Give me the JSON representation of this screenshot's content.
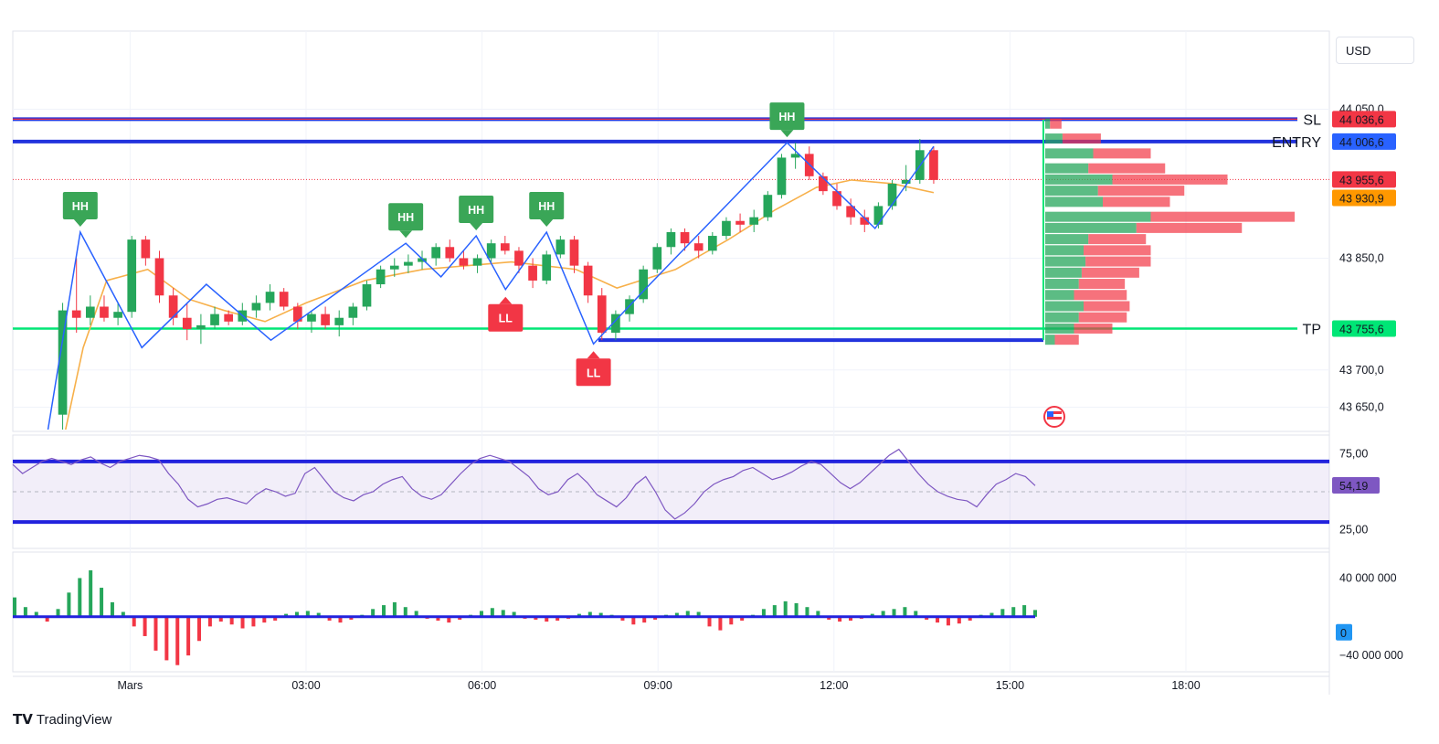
{
  "app": {
    "brand": "TradingView",
    "currency": "USD"
  },
  "chart_data": [
    {
      "type": "candlestick",
      "pane": "price",
      "time_labels": [
        "Mars",
        "03:00",
        "06:00",
        "09:00",
        "12:00",
        "15:00",
        "18:00"
      ],
      "y_ticks": [
        {
          "value": 44050,
          "label": "44 050,0"
        },
        {
          "value": 43850,
          "label": "43 850,0"
        },
        {
          "value": 43700,
          "label": "43 700,0"
        },
        {
          "value": 43650,
          "label": "43 650,0"
        }
      ],
      "ylim": [
        43620,
        44080
      ],
      "price_tags": [
        {
          "name": "SL",
          "value": 44036.6,
          "label": "44 036,6",
          "color": "#f23645"
        },
        {
          "name": "ENTRY",
          "value": 44006.6,
          "label": "44 006,6",
          "color": "#2962ff"
        },
        {
          "name": "last",
          "value": 43955.6,
          "label": "43 955,6",
          "color": "#f23645"
        },
        {
          "name": "ma",
          "value": 43930.9,
          "label": "43 930,9",
          "color": "#ff9800"
        },
        {
          "name": "TP",
          "value": 43755.6,
          "label": "43 755,6",
          "color": "#00e676"
        }
      ],
      "level_labels": [
        "SL",
        "ENTRY",
        "TP"
      ],
      "swing_markers": [
        {
          "label": "HH",
          "time": 1.15,
          "value": 43885
        },
        {
          "label": "HH",
          "time": 6.7,
          "value": 43870
        },
        {
          "label": "HH",
          "time": 7.9,
          "value": 43880
        },
        {
          "label": "HH",
          "time": 9.1,
          "value": 43885
        },
        {
          "label": "HH",
          "time": 13.2,
          "value": 44005
        },
        {
          "label": "LL",
          "time": 8.4,
          "value": 43808
        },
        {
          "label": "LL",
          "time": 9.9,
          "value": 43735
        }
      ],
      "zigzag": [
        [
          0.6,
          43620
        ],
        [
          1.15,
          43885
        ],
        [
          2.2,
          43730
        ],
        [
          3.3,
          43815
        ],
        [
          4.4,
          43740
        ],
        [
          6.7,
          43870
        ],
        [
          7.3,
          43825
        ],
        [
          7.9,
          43880
        ],
        [
          8.4,
          43808
        ],
        [
          9.1,
          43885
        ],
        [
          9.9,
          43735
        ],
        [
          10.8,
          43810
        ],
        [
          13.2,
          44005
        ],
        [
          14.7,
          43890
        ],
        [
          15.7,
          44000
        ]
      ],
      "ma_line": [
        [
          0.9,
          43620
        ],
        [
          1.2,
          43730
        ],
        [
          1.6,
          43820
        ],
        [
          2.3,
          43835
        ],
        [
          3,
          43795
        ],
        [
          3.6,
          43780
        ],
        [
          4.3,
          43765
        ],
        [
          5,
          43790
        ],
        [
          6,
          43820
        ],
        [
          7,
          43835
        ],
        [
          8.5,
          43845
        ],
        [
          9.6,
          43835
        ],
        [
          10.3,
          43810
        ],
        [
          11.3,
          43835
        ],
        [
          12.2,
          43875
        ],
        [
          13,
          43915
        ],
        [
          13.7,
          43945
        ],
        [
          14.3,
          43955
        ],
        [
          15,
          43950
        ],
        [
          15.7,
          43938
        ]
      ],
      "candles_ohlc": [
        [
          43640,
          43790,
          43620,
          43780
        ],
        [
          43780,
          43850,
          43750,
          43770
        ],
        [
          43770,
          43800,
          43760,
          43785
        ],
        [
          43785,
          43800,
          43765,
          43770
        ],
        [
          43770,
          43790,
          43760,
          43778
        ],
        [
          43778,
          43880,
          43770,
          43875
        ],
        [
          43875,
          43880,
          43840,
          43850
        ],
        [
          43850,
          43860,
          43790,
          43800
        ],
        [
          43800,
          43810,
          43760,
          43770
        ],
        [
          43770,
          43790,
          43740,
          43755
        ],
        [
          43755,
          43775,
          43735,
          43760
        ],
        [
          43760,
          43785,
          43755,
          43775
        ],
        [
          43775,
          43780,
          43760,
          43765
        ],
        [
          43765,
          43790,
          43760,
          43780
        ],
        [
          43780,
          43800,
          43770,
          43790
        ],
        [
          43790,
          43815,
          43780,
          43805
        ],
        [
          43805,
          43810,
          43780,
          43785
        ],
        [
          43785,
          43790,
          43755,
          43765
        ],
        [
          43765,
          43780,
          43750,
          43775
        ],
        [
          43775,
          43785,
          43755,
          43760
        ],
        [
          43760,
          43780,
          43745,
          43770
        ],
        [
          43770,
          43790,
          43760,
          43785
        ],
        [
          43785,
          43820,
          43780,
          43815
        ],
        [
          43815,
          43840,
          43810,
          43835
        ],
        [
          43835,
          43850,
          43825,
          43840
        ],
        [
          43840,
          43855,
          43830,
          43845
        ],
        [
          43845,
          43860,
          43835,
          43850
        ],
        [
          43850,
          43870,
          43840,
          43865
        ],
        [
          43865,
          43875,
          43845,
          43850
        ],
        [
          43850,
          43860,
          43835,
          43840
        ],
        [
          43840,
          43855,
          43830,
          43850
        ],
        [
          43850,
          43875,
          43845,
          43870
        ],
        [
          43870,
          43880,
          43855,
          43860
        ],
        [
          43860,
          43865,
          43830,
          43840
        ],
        [
          43840,
          43850,
          43810,
          43820
        ],
        [
          43820,
          43860,
          43815,
          43855
        ],
        [
          43855,
          43880,
          43850,
          43875
        ],
        [
          43875,
          43880,
          43830,
          43840
        ],
        [
          43840,
          43845,
          43790,
          43800
        ],
        [
          43800,
          43810,
          43740,
          43750
        ],
        [
          43750,
          43780,
          43740,
          43775
        ],
        [
          43775,
          43800,
          43765,
          43795
        ],
        [
          43795,
          43840,
          43790,
          43835
        ],
        [
          43835,
          43870,
          43830,
          43865
        ],
        [
          43865,
          43890,
          43855,
          43885
        ],
        [
          43885,
          43890,
          43860,
          43870
        ],
        [
          43870,
          43880,
          43850,
          43860
        ],
        [
          43860,
          43885,
          43855,
          43880
        ],
        [
          43880,
          43905,
          43875,
          43900
        ],
        [
          43900,
          43910,
          43885,
          43895
        ],
        [
          43895,
          43915,
          43885,
          43905
        ],
        [
          43905,
          43940,
          43900,
          43935
        ],
        [
          43935,
          43990,
          43930,
          43985
        ],
        [
          43985,
          44005,
          43970,
          43990
        ],
        [
          43990,
          44000,
          43955,
          43960
        ],
        [
          43960,
          43965,
          43935,
          43940
        ],
        [
          43940,
          43950,
          43915,
          43920
        ],
        [
          43920,
          43930,
          43895,
          43905
        ],
        [
          43905,
          43915,
          43885,
          43895
        ],
        [
          43895,
          43925,
          43890,
          43920
        ],
        [
          43920,
          43955,
          43915,
          43950
        ],
        [
          43950,
          43975,
          43940,
          43955
        ],
        [
          43955,
          44010,
          43950,
          43995
        ],
        [
          43995,
          44000,
          43950,
          43955
        ]
      ],
      "volume_profile": [
        {
          "value": 44030,
          "up": 5,
          "down": 12
        },
        {
          "value": 44010,
          "up": 18,
          "down": 40
        },
        {
          "value": 43990,
          "up": 50,
          "down": 60
        },
        {
          "value": 43970,
          "up": 45,
          "down": 80
        },
        {
          "value": 43955,
          "up": 70,
          "down": 120
        },
        {
          "value": 43940,
          "up": 55,
          "down": 90
        },
        {
          "value": 43925,
          "up": 60,
          "down": 70
        },
        {
          "value": 43905,
          "up": 110,
          "down": 150
        },
        {
          "value": 43890,
          "up": 95,
          "down": 110
        },
        {
          "value": 43875,
          "up": 45,
          "down": 60
        },
        {
          "value": 43860,
          "up": 40,
          "down": 70
        },
        {
          "value": 43845,
          "up": 42,
          "down": 68
        },
        {
          "value": 43830,
          "up": 38,
          "down": 60
        },
        {
          "value": 43815,
          "up": 35,
          "down": 48
        },
        {
          "value": 43800,
          "up": 30,
          "down": 55
        },
        {
          "value": 43785,
          "up": 40,
          "down": 48
        },
        {
          "value": 43770,
          "up": 35,
          "down": 50
        },
        {
          "value": 43755,
          "up": 30,
          "down": 40
        },
        {
          "value": 43740,
          "up": 10,
          "down": 25
        }
      ],
      "horizontal_levels": [
        44036.6,
        44006.6,
        43755.6,
        43740
      ]
    },
    {
      "type": "line",
      "pane": "rsi",
      "y_ticks": [
        {
          "value": 75,
          "label": "75,00"
        },
        {
          "value": 25,
          "label": "25,00"
        }
      ],
      "band": [
        30,
        70
      ],
      "ylim": [
        15,
        85
      ],
      "last_value": {
        "value": 54.19,
        "label": "54,19",
        "color": "#7e57c2"
      },
      "values": [
        68,
        62,
        66,
        70,
        72,
        70,
        68,
        71,
        73,
        69,
        66,
        70,
        72,
        74,
        73,
        71,
        62,
        55,
        45,
        40,
        42,
        45,
        46,
        44,
        42,
        48,
        52,
        50,
        47,
        49,
        62,
        66,
        58,
        50,
        46,
        44,
        48,
        50,
        55,
        58,
        60,
        52,
        47,
        45,
        48,
        55,
        62,
        68,
        72,
        74,
        72,
        70,
        65,
        60,
        52,
        48,
        50,
        58,
        62,
        56,
        48,
        44,
        40,
        46,
        55,
        60,
        50,
        38,
        32,
        36,
        42,
        50,
        55,
        58,
        60,
        64,
        66,
        62,
        58,
        60,
        63,
        67,
        70,
        68,
        62,
        56,
        52,
        56,
        62,
        68,
        74,
        78,
        70,
        62,
        55,
        50,
        47,
        45,
        44,
        40,
        48,
        55,
        58,
        62,
        60,
        54
      ]
    },
    {
      "type": "bar",
      "pane": "volume-delta",
      "y_ticks": [
        {
          "value": 40000000,
          "label": "40 000 000"
        },
        {
          "value": 0,
          "label": "0"
        },
        {
          "value": -40000000,
          "label": "−40 000 000"
        }
      ],
      "ylim": [
        -55000000,
        65000000
      ],
      "values": [
        20,
        10,
        5,
        -5,
        8,
        25,
        40,
        48,
        30,
        15,
        5,
        -10,
        -20,
        -35,
        -45,
        -50,
        -40,
        -25,
        -10,
        -5,
        -8,
        -12,
        -10,
        -6,
        -4,
        3,
        5,
        6,
        4,
        -4,
        -6,
        -3,
        2,
        8,
        12,
        15,
        10,
        6,
        -2,
        -4,
        -6,
        -3,
        2,
        6,
        9,
        7,
        5,
        -2,
        -3,
        -5,
        -4,
        -2,
        3,
        5,
        4,
        2,
        -4,
        -8,
        -6,
        -3,
        2,
        4,
        6,
        5,
        -10,
        -14,
        -8,
        -4,
        2,
        8,
        12,
        16,
        14,
        10,
        6,
        -3,
        -5,
        -4,
        -2,
        3,
        6,
        8,
        10,
        6,
        -3,
        -6,
        -9,
        -7,
        -4,
        2,
        4,
        8,
        10,
        12,
        7
      ]
    }
  ]
}
